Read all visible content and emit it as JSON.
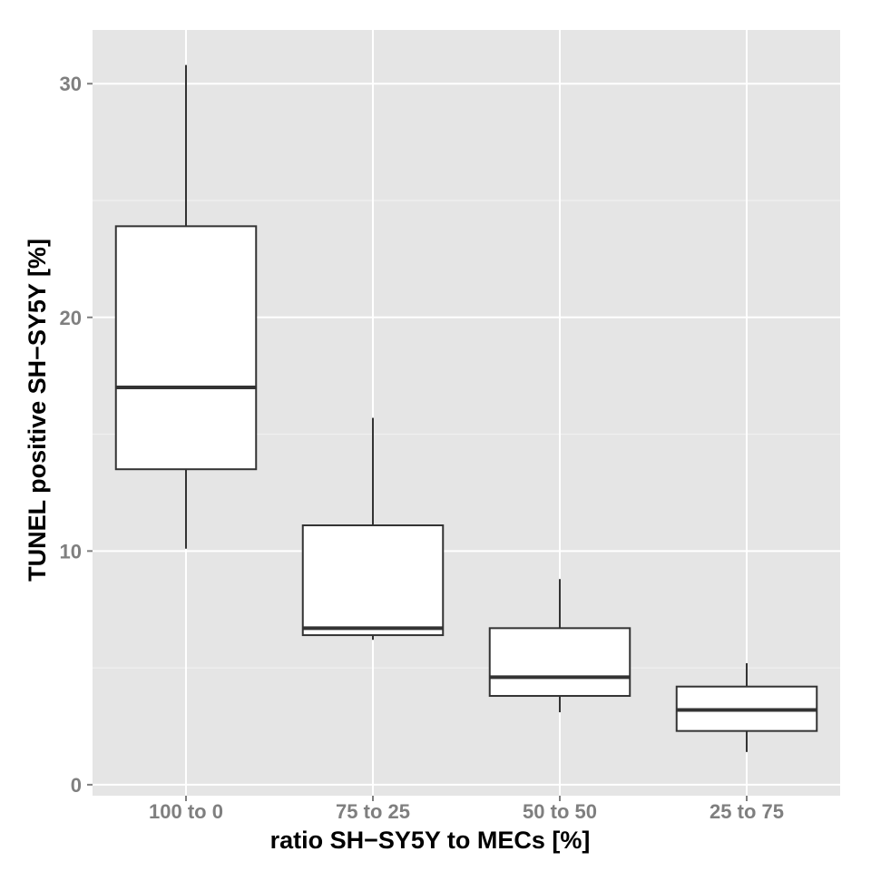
{
  "chart_data": {
    "type": "boxplot",
    "title": "",
    "xlabel": "ratio SH−SY5Y to MECs [%]",
    "ylabel": "TUNEL positive SH−SY5Y [%]",
    "categories": [
      "100 to 0",
      "75 to 25",
      "50 to 50",
      "25 to 75"
    ],
    "boxes": [
      {
        "category": "100 to 0",
        "whisker_low": 10.1,
        "q1": 13.5,
        "median": 17.0,
        "q3": 23.9,
        "whisker_high": 30.8
      },
      {
        "category": "75 to 25",
        "whisker_low": 6.2,
        "q1": 6.4,
        "median": 6.7,
        "q3": 11.1,
        "whisker_high": 15.7
      },
      {
        "category": "50 to 50",
        "whisker_low": 3.1,
        "q1": 3.8,
        "median": 4.6,
        "q3": 6.7,
        "whisker_high": 8.8
      },
      {
        "category": "25 to 75",
        "whisker_low": 1.4,
        "q1": 2.3,
        "median": 3.2,
        "q3": 4.2,
        "whisker_high": 5.2
      }
    ],
    "yticks": [
      0,
      10,
      20,
      30
    ],
    "ytick_labels": [
      "0",
      "10",
      "20",
      "30"
    ],
    "ylim": [
      -0.47,
      32.3
    ],
    "grid": true,
    "colors": {
      "panel": "#e5e5e5",
      "grid": "#ffffff",
      "box_fill": "#ffffff",
      "box_line": "#333333",
      "tick_label": "#7f7f7f"
    }
  }
}
